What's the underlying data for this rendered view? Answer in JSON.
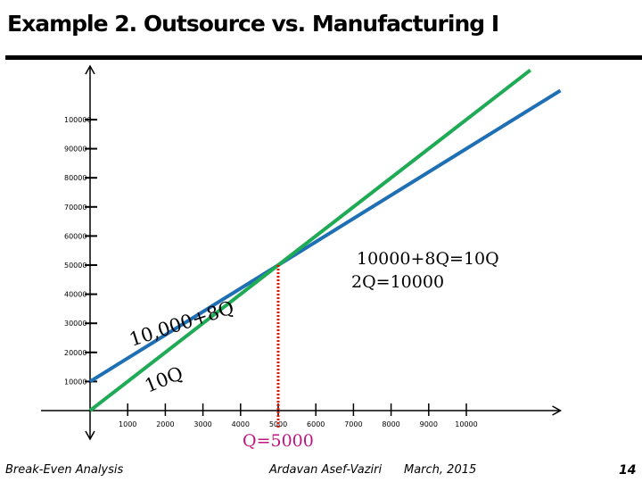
{
  "slide": {
    "title": "Example 2. Outsource vs. Manufacturing I",
    "footer_left": "Break-Even Analysis",
    "footer_author": "Ardavan Asef-Vaziri",
    "footer_date": "March, 2015",
    "page_number": "14"
  },
  "colors": {
    "manufacture_line": "#1f6fb5",
    "outsource_line": "#1faa55",
    "break_even_marker": "#e01010",
    "break_even_label": "#c0157f"
  },
  "chart_data": {
    "type": "line",
    "title": "",
    "xlabel": "",
    "ylabel": "",
    "xlim": [
      0,
      12500
    ],
    "ylim": [
      0,
      110000
    ],
    "x_ticks": [
      1000,
      2000,
      3000,
      4000,
      5000,
      6000,
      7000,
      8000,
      9000,
      10000
    ],
    "y_ticks": [
      10000,
      20000,
      30000,
      40000,
      50000,
      60000,
      70000,
      80000,
      90000,
      100000
    ],
    "grid": false,
    "series": [
      {
        "name": "10,000+8Q",
        "x": [
          0,
          12500
        ],
        "y": [
          10000,
          110000
        ]
      },
      {
        "name": "10Q",
        "x": [
          0,
          11700
        ],
        "y": [
          0,
          117000
        ]
      }
    ],
    "break_even": {
      "x": 5000,
      "y": 50000,
      "label": "Q=5000"
    },
    "annotations": [
      "10000+8Q=10Q",
      "2Q=10000"
    ]
  }
}
